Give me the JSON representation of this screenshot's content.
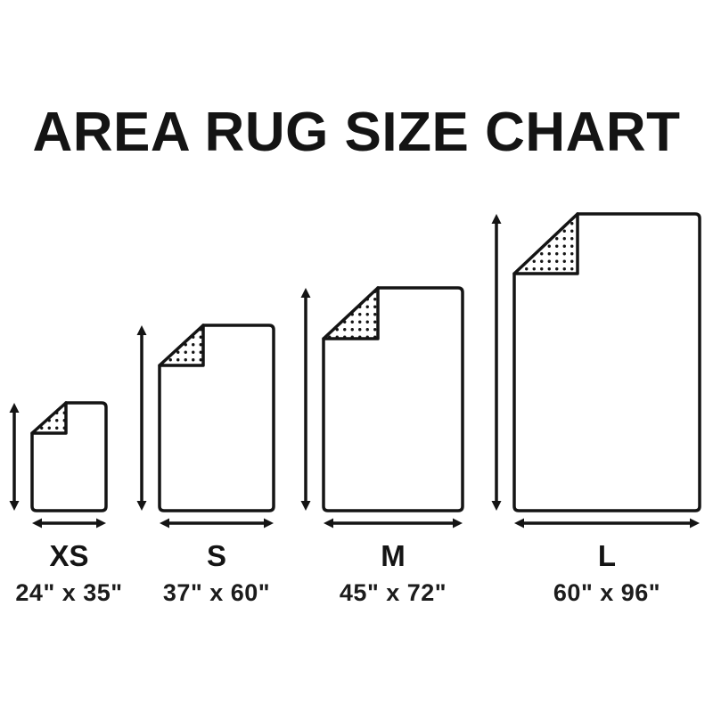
{
  "title": "AREA RUG SIZE CHART",
  "colors": {
    "ink": "#141414",
    "background": "#ffffff"
  },
  "chart": {
    "unit": "inches",
    "sizes": [
      {
        "code": "XS",
        "dimensions_label": "24\" x 35\"",
        "width_in": 24,
        "height_in": 35
      },
      {
        "code": "S",
        "dimensions_label": "37\" x 60\"",
        "width_in": 37,
        "height_in": 60
      },
      {
        "code": "M",
        "dimensions_label": "45\" x 72\"",
        "width_in": 45,
        "height_in": 72
      },
      {
        "code": "L",
        "dimensions_label": "60\" x 96\"",
        "width_in": 60,
        "height_in": 96
      }
    ]
  }
}
